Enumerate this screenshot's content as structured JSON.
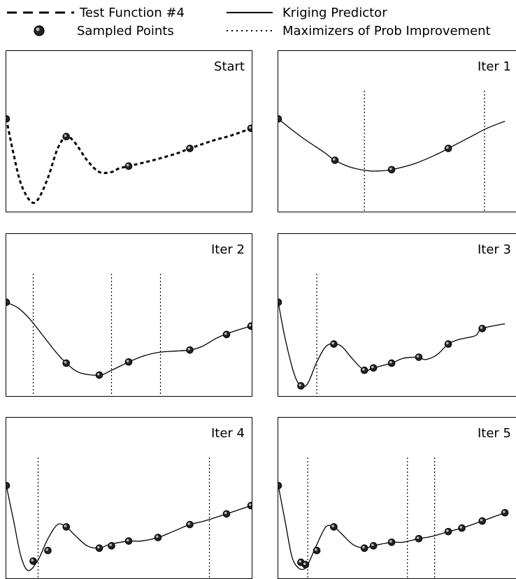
{
  "legend": {
    "test_function": "Test Function #4",
    "kriging": "Kriging Predictor",
    "sampled": "Sampled Points",
    "maximizers": "Maximizers of Prob Improvement"
  },
  "chart_data": [
    {
      "type": "line",
      "title": "Start",
      "xlim": [
        0,
        1
      ],
      "ylim": [
        0,
        1
      ],
      "grid": false,
      "curve": "dashed",
      "line": [
        [
          0,
          0.25
        ],
        [
          0.03,
          0.55
        ],
        [
          0.06,
          0.8
        ],
        [
          0.1,
          0.95
        ],
        [
          0.13,
          0.93
        ],
        [
          0.17,
          0.75
        ],
        [
          0.21,
          0.5
        ],
        [
          0.245,
          0.4
        ],
        [
          0.28,
          0.45
        ],
        [
          0.33,
          0.6
        ],
        [
          0.38,
          0.7
        ],
        [
          0.43,
          0.7
        ],
        [
          0.46,
          0.67
        ],
        [
          0.5,
          0.65
        ],
        [
          0.6,
          0.6
        ],
        [
          0.7,
          0.54
        ],
        [
          0.75,
          0.5
        ],
        [
          0.85,
          0.43
        ],
        [
          0.92,
          0.39
        ],
        [
          1,
          0.33
        ]
      ],
      "points": [
        [
          0,
          0.25
        ],
        [
          0.245,
          0.4
        ],
        [
          0.5,
          0.65
        ],
        [
          0.75,
          0.5
        ],
        [
          1,
          0.33
        ]
      ],
      "vlines": []
    },
    {
      "type": "line",
      "title": "Iter 1",
      "xlim": [
        0,
        1
      ],
      "ylim": [
        0,
        1
      ],
      "grid": false,
      "curve": "solid",
      "line": [
        [
          0,
          0.25
        ],
        [
          0.1,
          0.4
        ],
        [
          0.2,
          0.53
        ],
        [
          0.25,
          0.6
        ],
        [
          0.32,
          0.66
        ],
        [
          0.4,
          0.69
        ],
        [
          0.45,
          0.69
        ],
        [
          0.5,
          0.68
        ],
        [
          0.6,
          0.63
        ],
        [
          0.7,
          0.55
        ],
        [
          0.75,
          0.5
        ],
        [
          0.85,
          0.4
        ],
        [
          0.92,
          0.33
        ],
        [
          1,
          0.27
        ]
      ],
      "points": [
        [
          0,
          0.25
        ],
        [
          0.25,
          0.6
        ],
        [
          0.5,
          0.68
        ],
        [
          0.75,
          0.5
        ]
      ],
      "vlines": [
        0.38,
        0.91
      ]
    },
    {
      "type": "line",
      "title": "Iter 2",
      "xlim": [
        0,
        1
      ],
      "ylim": [
        0,
        1
      ],
      "grid": false,
      "curve": "solid",
      "line": [
        [
          0,
          0.25
        ],
        [
          0.05,
          0.3
        ],
        [
          0.1,
          0.4
        ],
        [
          0.15,
          0.53
        ],
        [
          0.2,
          0.66
        ],
        [
          0.245,
          0.76
        ],
        [
          0.3,
          0.84
        ],
        [
          0.38,
          0.86
        ],
        [
          0.43,
          0.82
        ],
        [
          0.5,
          0.75
        ],
        [
          0.56,
          0.7
        ],
        [
          0.62,
          0.67
        ],
        [
          0.68,
          0.66
        ],
        [
          0.75,
          0.65
        ],
        [
          0.8,
          0.62
        ],
        [
          0.86,
          0.55
        ],
        [
          0.92,
          0.5
        ],
        [
          1,
          0.45
        ]
      ],
      "points": [
        [
          0,
          0.25
        ],
        [
          0.245,
          0.76
        ],
        [
          0.38,
          0.86
        ],
        [
          0.5,
          0.75
        ],
        [
          0.75,
          0.65
        ],
        [
          0.9,
          0.52
        ],
        [
          1,
          0.45
        ]
      ],
      "vlines": [
        0.11,
        0.43,
        0.63
      ]
    },
    {
      "type": "line",
      "title": "Iter 3",
      "xlim": [
        0,
        1
      ],
      "ylim": [
        0,
        1
      ],
      "grid": false,
      "curve": "solid",
      "line": [
        [
          0,
          0.25
        ],
        [
          0.03,
          0.55
        ],
        [
          0.07,
          0.85
        ],
        [
          0.1,
          0.95
        ],
        [
          0.13,
          0.93
        ],
        [
          0.17,
          0.75
        ],
        [
          0.21,
          0.62
        ],
        [
          0.245,
          0.6
        ],
        [
          0.28,
          0.62
        ],
        [
          0.33,
          0.73
        ],
        [
          0.38,
          0.82
        ],
        [
          0.42,
          0.8
        ],
        [
          0.46,
          0.78
        ],
        [
          0.5,
          0.76
        ],
        [
          0.55,
          0.72
        ],
        [
          0.6,
          0.71
        ],
        [
          0.62,
          0.71
        ],
        [
          0.65,
          0.73
        ],
        [
          0.7,
          0.69
        ],
        [
          0.75,
          0.6
        ],
        [
          0.8,
          0.56
        ],
        [
          0.87,
          0.53
        ],
        [
          0.9,
          0.47
        ],
        [
          1,
          0.43
        ]
      ],
      "points": [
        [
          0,
          0.25
        ],
        [
          0.1,
          0.95
        ],
        [
          0.245,
          0.6
        ],
        [
          0.38,
          0.82
        ],
        [
          0.42,
          0.8
        ],
        [
          0.5,
          0.76
        ],
        [
          0.62,
          0.71
        ],
        [
          0.75,
          0.6
        ],
        [
          0.9,
          0.47
        ]
      ],
      "vlines": [
        0.17
      ]
    },
    {
      "type": "line",
      "title": "Iter 4",
      "xlim": [
        0,
        1
      ],
      "ylim": [
        0,
        1
      ],
      "grid": false,
      "curve": "solid",
      "line": [
        [
          0,
          0.25
        ],
        [
          0.03,
          0.55
        ],
        [
          0.06,
          0.85
        ],
        [
          0.09,
          0.97
        ],
        [
          0.13,
          0.88
        ],
        [
          0.17,
          0.7
        ],
        [
          0.21,
          0.58
        ],
        [
          0.245,
          0.6
        ],
        [
          0.28,
          0.67
        ],
        [
          0.33,
          0.76
        ],
        [
          0.38,
          0.78
        ],
        [
          0.42,
          0.75
        ],
        [
          0.5,
          0.72
        ],
        [
          0.55,
          0.72
        ],
        [
          0.62,
          0.69
        ],
        [
          0.68,
          0.64
        ],
        [
          0.75,
          0.58
        ],
        [
          0.81,
          0.55
        ],
        [
          0.9,
          0.49
        ],
        [
          1,
          0.42
        ]
      ],
      "points": [
        [
          0,
          0.25
        ],
        [
          0.11,
          0.89
        ],
        [
          0.17,
          0.8
        ],
        [
          0.245,
          0.6
        ],
        [
          0.38,
          0.78
        ],
        [
          0.43,
          0.76
        ],
        [
          0.5,
          0.72
        ],
        [
          0.62,
          0.69
        ],
        [
          0.75,
          0.58
        ],
        [
          0.9,
          0.49
        ],
        [
          1,
          0.42
        ]
      ],
      "vlines": [
        0.13,
        0.83
      ]
    },
    {
      "type": "line",
      "title": "Iter 5",
      "xlim": [
        0,
        1
      ],
      "ylim": [
        0,
        1
      ],
      "grid": false,
      "curve": "solid",
      "line": [
        [
          0,
          0.25
        ],
        [
          0.03,
          0.55
        ],
        [
          0.06,
          0.85
        ],
        [
          0.09,
          0.95
        ],
        [
          0.12,
          0.95
        ],
        [
          0.14,
          0.88
        ],
        [
          0.17,
          0.75
        ],
        [
          0.21,
          0.6
        ],
        [
          0.245,
          0.6
        ],
        [
          0.28,
          0.66
        ],
        [
          0.33,
          0.75
        ],
        [
          0.38,
          0.78
        ],
        [
          0.42,
          0.76
        ],
        [
          0.5,
          0.73
        ],
        [
          0.55,
          0.73
        ],
        [
          0.62,
          0.7
        ],
        [
          0.68,
          0.68
        ],
        [
          0.75,
          0.64
        ],
        [
          0.81,
          0.61
        ],
        [
          0.9,
          0.55
        ],
        [
          1,
          0.48
        ]
      ],
      "points": [
        [
          0,
          0.25
        ],
        [
          0.1,
          0.9
        ],
        [
          0.12,
          0.92
        ],
        [
          0.17,
          0.8
        ],
        [
          0.245,
          0.6
        ],
        [
          0.38,
          0.78
        ],
        [
          0.42,
          0.76
        ],
        [
          0.5,
          0.73
        ],
        [
          0.62,
          0.7
        ],
        [
          0.75,
          0.64
        ],
        [
          0.81,
          0.61
        ],
        [
          0.9,
          0.55
        ],
        [
          1,
          0.48
        ]
      ],
      "vlines": [
        0.13,
        0.57,
        0.69
      ]
    }
  ]
}
